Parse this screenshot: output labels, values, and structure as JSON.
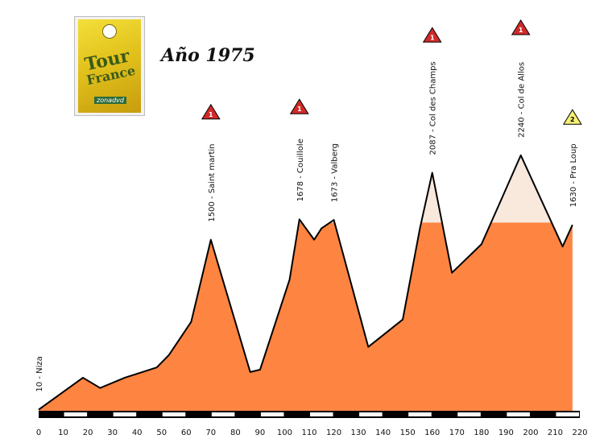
{
  "header": {
    "title": "Año 1975"
  },
  "cover": {
    "text_main": "Tour",
    "text_sub": "France",
    "text_site": "zonadvd"
  },
  "colors": {
    "fill": "#fe8442",
    "high_fill": "#f9e8dc",
    "outline": "#000000",
    "cat1": "#d12a2a",
    "cat2": "#f6f073"
  },
  "chart_data": {
    "type": "area",
    "title": "Año 1975",
    "xlabel": "",
    "ylabel": "",
    "xlim": [
      0,
      220
    ],
    "ylim": [
      0,
      2500
    ],
    "x_ticks": [
      0,
      10,
      20,
      30,
      40,
      50,
      60,
      70,
      80,
      90,
      100,
      110,
      120,
      130,
      140,
      150,
      160,
      170,
      180,
      190,
      200,
      210,
      220
    ],
    "profile": [
      {
        "x": 0,
        "y": 10
      },
      {
        "x": 18,
        "y": 290
      },
      {
        "x": 25,
        "y": 200
      },
      {
        "x": 35,
        "y": 290
      },
      {
        "x": 48,
        "y": 380
      },
      {
        "x": 53,
        "y": 490
      },
      {
        "x": 62,
        "y": 780
      },
      {
        "x": 70,
        "y": 1500
      },
      {
        "x": 86,
        "y": 340
      },
      {
        "x": 90,
        "y": 360
      },
      {
        "x": 102,
        "y": 1150
      },
      {
        "x": 106,
        "y": 1678
      },
      {
        "x": 112,
        "y": 1500
      },
      {
        "x": 115,
        "y": 1600
      },
      {
        "x": 120,
        "y": 1673
      },
      {
        "x": 134,
        "y": 560
      },
      {
        "x": 148,
        "y": 800
      },
      {
        "x": 155,
        "y": 1600
      },
      {
        "x": 160,
        "y": 2087
      },
      {
        "x": 168,
        "y": 1210
      },
      {
        "x": 180,
        "y": 1460
      },
      {
        "x": 187,
        "y": 1800
      },
      {
        "x": 196,
        "y": 2240
      },
      {
        "x": 213,
        "y": 1440
      },
      {
        "x": 217,
        "y": 1630
      }
    ],
    "climbs": [
      {
        "x": 0,
        "y": 10,
        "label": "10 - Niza",
        "category": null
      },
      {
        "x": 70,
        "y": 1500,
        "label": "1500 - Saint martin",
        "category": "1"
      },
      {
        "x": 106,
        "y": 1678,
        "label": "1678 - Couillole",
        "category": "1"
      },
      {
        "x": 120,
        "y": 1673,
        "label": "1673 - Valberg",
        "category": null
      },
      {
        "x": 160,
        "y": 2087,
        "label": "2087 - Col des Champs",
        "category": "1"
      },
      {
        "x": 196,
        "y": 2240,
        "label": "2240 - Col de Allos",
        "category": "1"
      },
      {
        "x": 217,
        "y": 1630,
        "label": "1630 - Pra Loup",
        "category": "2"
      }
    ]
  }
}
